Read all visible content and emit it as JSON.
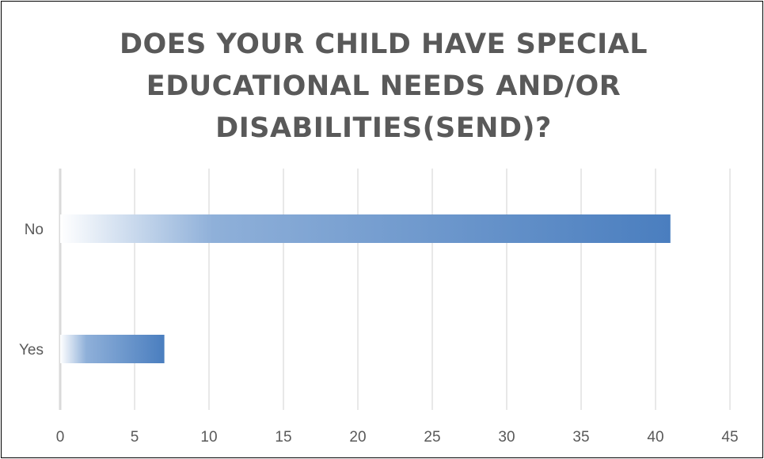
{
  "chart_data": {
    "type": "bar",
    "orientation": "horizontal",
    "title": "DOES YOUR CHILD HAVE SPECIAL EDUCATIONAL NEEDS AND/OR DISABILITIES(SEND)?",
    "categories": [
      "No",
      "Yes"
    ],
    "values": [
      41,
      7
    ],
    "xlabel": "",
    "ylabel": "",
    "xlim": [
      0,
      45
    ],
    "x_ticks": [
      0,
      5,
      10,
      15,
      20,
      25,
      30,
      35,
      40,
      45
    ],
    "grid": "vertical",
    "legend": "none",
    "bar_color": "#4a7ebf",
    "bar_fill": "gradient from white (left) to blue (right)"
  },
  "colors": {
    "text": "#595959",
    "gridline": "#d9d9d9",
    "border": "#000000"
  }
}
